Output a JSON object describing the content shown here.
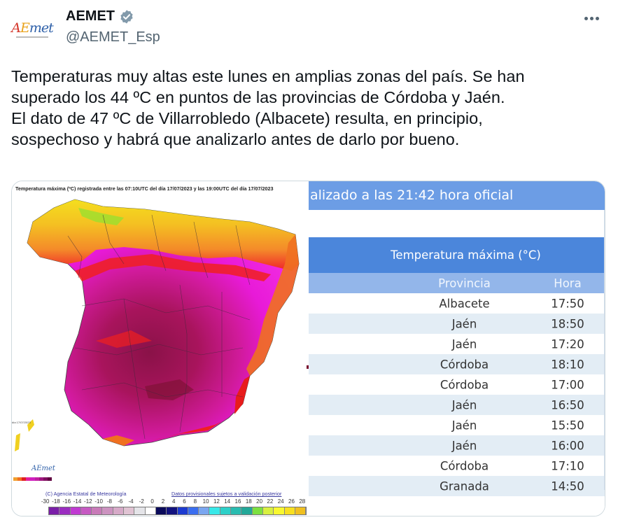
{
  "account": {
    "display_name": "AEMET",
    "handle": "@AEMET_Esp",
    "verified": true,
    "avatar_logo": {
      "part1": "A",
      "part2": "E",
      "part3": "met"
    },
    "more_icon": "ellipsis-icon"
  },
  "tweet": {
    "text": "Temperaturas muy altas este lunes en amplias zonas del país. Se han\nsuperado los 44 ºC en puntos de las provincias de Córdoba y Jaén.\nEl dato de 47 ºC de Villarrobledo (Albacete) resulta, en principio,\nsospechoso y habrá que analizarlo antes de darlo por bueno."
  },
  "map_image": {
    "title": "Temperatura máxima (ºC) registrada entre las 07:10UTC del día 17/07/2023 y las 19:00UTC del día 17/07/2023",
    "canary_label": "día 17/07/2023",
    "mini_logo": "AEmet",
    "credit": "(C) Agencia Estatal de Meteorología",
    "disclaimer": "Datos provisionales sujetos a validación posterior",
    "scale_labels": [
      "-30",
      "-18",
      "-16",
      "-14",
      "-12",
      "-10",
      "-8",
      "-6",
      "-4",
      "-2",
      "0",
      "2",
      "4",
      "6",
      "8",
      "10",
      "12",
      "14",
      "16",
      "18",
      "20",
      "22",
      "24",
      "26",
      "28"
    ],
    "scale_colors": [
      "#7a1ea8",
      "#9a2cc0",
      "#c03ad2",
      "#c659c2",
      "#c87ab8",
      "#cc93c0",
      "#d6aac8",
      "#e0c3d3",
      "#e4e4e8",
      "#ffffff",
      "#0a0a5a",
      "#12127e",
      "#1c3ad0",
      "#3a6ef0",
      "#7aa6f0",
      "#38e8e8",
      "#2cd0c8",
      "#28bcb0",
      "#22a898",
      "#7ce040",
      "#d8f040",
      "#f8f830",
      "#f8e020",
      "#f0c020"
    ],
    "mini_legend_colors": [
      "#f0a030",
      "#f07020",
      "#e02020",
      "#e020a0",
      "#d020c0",
      "#c020a0",
      "#a01880",
      "#801060",
      "#600040"
    ]
  },
  "table_image": {
    "update_text": "alizado a las 21:42 hora oficial",
    "table_title": "Temperatura máxima (°C)",
    "columns": [
      "Provincia",
      "Hora"
    ],
    "rows": [
      {
        "provincia": "Albacete",
        "hora": "17:50"
      },
      {
        "provincia": "Jaén",
        "hora": "18:50"
      },
      {
        "provincia": "Jaén",
        "hora": "17:20"
      },
      {
        "provincia": "Córdoba",
        "hora": "18:10"
      },
      {
        "provincia": "Córdoba",
        "hora": "17:00"
      },
      {
        "provincia": "Jaén",
        "hora": "16:50"
      },
      {
        "provincia": "Jaén",
        "hora": "15:50"
      },
      {
        "provincia": "Jaén",
        "hora": "16:00"
      },
      {
        "provincia": "Córdoba",
        "hora": "17:10"
      },
      {
        "provincia": "Granada",
        "hora": "14:50"
      }
    ]
  },
  "colors": {
    "update_bar": "#6c9de5",
    "table_title_bg": "#4b86db",
    "table_head_bg": "#93b6ea",
    "row_alt_bg": "#e3edf5",
    "verified_badge": "#829aab"
  }
}
